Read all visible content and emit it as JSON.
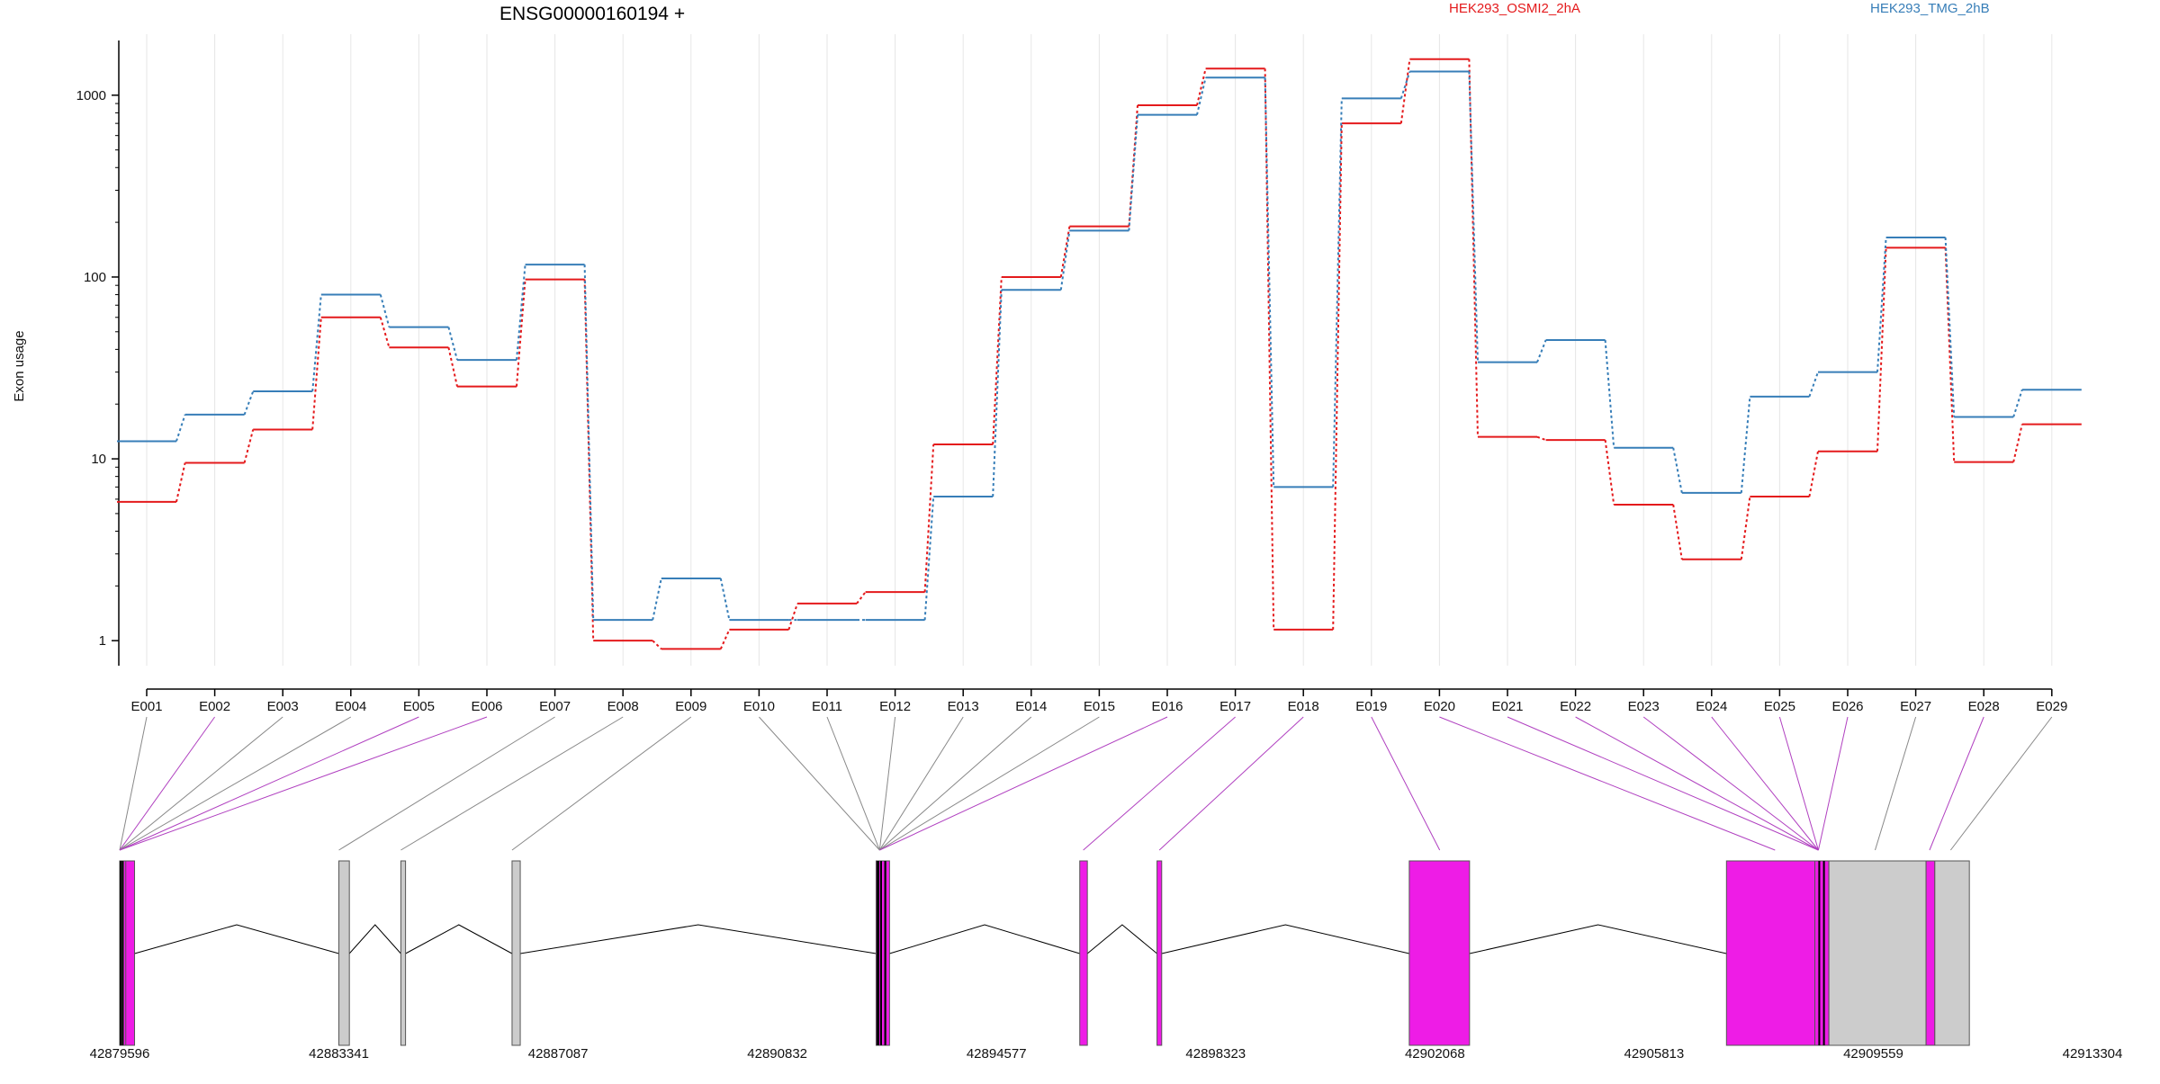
{
  "chart_data": {
    "type": "line",
    "title": "ENSG00000160194 +",
    "ylabel": "Exon usage",
    "xlabel": "",
    "y_scale": "log",
    "ylim": [
      0.6,
      2000
    ],
    "y_ticks": [
      1,
      10,
      100,
      1000
    ],
    "y_tick_labels": [
      "1",
      "10",
      "100",
      "1000"
    ],
    "grid": true,
    "legend_placement": "top",
    "categories": [
      "E001",
      "E002",
      "E003",
      "E004",
      "E005",
      "E006",
      "E007",
      "E008",
      "E009",
      "E010",
      "E011",
      "E012",
      "E013",
      "E014",
      "E015",
      "E016",
      "E017",
      "E018",
      "E019",
      "E020",
      "E021",
      "E022",
      "E023",
      "E024",
      "E025",
      "E026",
      "E027",
      "E028",
      "E029"
    ],
    "series": [
      {
        "name": "HEK293_OSMI2_2hA",
        "color": "#e41a1c",
        "values": [
          5.8,
          9.5,
          14.5,
          60,
          41,
          25,
          97,
          1.0,
          0.9,
          1.15,
          1.6,
          1.85,
          12,
          100,
          190,
          880,
          1400,
          1.15,
          700,
          1580,
          13.2,
          12.7,
          5.6,
          2.8,
          6.2,
          11,
          145,
          9.6,
          15.5
        ]
      },
      {
        "name": "HEK293_TMG_2hB",
        "color": "#377eb8",
        "values": [
          12.5,
          17.5,
          23.5,
          80,
          53,
          35,
          117,
          1.3,
          2.2,
          1.3,
          1.3,
          1.3,
          6.2,
          85,
          180,
          780,
          1250,
          7,
          960,
          1350,
          34,
          45,
          11.5,
          6.5,
          22,
          30,
          165,
          17,
          24
        ]
      }
    ],
    "gene_model": {
      "coordinates": [
        "42879596",
        "42883341",
        "42887087",
        "42890832",
        "42894577",
        "42898323",
        "42902068",
        "42905813",
        "42909559",
        "42913304"
      ],
      "exon_colors": {
        "significant": "#ee1ce6",
        "default": "#cccccc",
        "marker": "#000000"
      }
    }
  }
}
